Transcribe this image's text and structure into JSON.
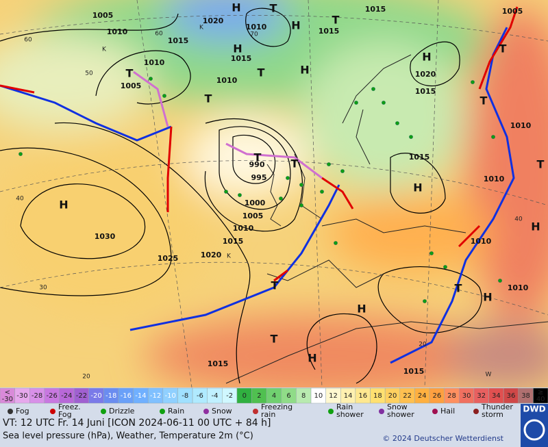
{
  "map": {
    "isobar_labels": [
      1005,
      1010,
      1015,
      1020,
      1010,
      1015,
      1015,
      1005,
      1010,
      1005,
      1015,
      1010,
      1020,
      1015,
      1010,
      1015,
      990,
      995,
      1000,
      1005,
      1010,
      1015,
      1020,
      1030,
      1025,
      1010,
      1010,
      1010,
      1015,
      1015
    ],
    "pressure_centers": [
      "H",
      "T",
      "H",
      "T",
      "H",
      "T",
      "H",
      "H",
      "T",
      "T",
      "T",
      "T",
      "T",
      "T",
      "H",
      "H",
      "H",
      "T",
      "H",
      "H",
      "T",
      "T",
      "H",
      "T"
    ],
    "latitude_labels": [
      60,
      50,
      40,
      30,
      20,
      40,
      20,
      60,
      70
    ],
    "grid_marks": [
      "K",
      "K",
      "K",
      "W"
    ]
  },
  "scale": {
    "under": {
      "label": "<",
      "value": -30
    },
    "values": [
      -30,
      -28,
      -26,
      -24,
      -22,
      -20,
      -18,
      -16,
      -14,
      -12,
      -10,
      -8,
      -6,
      -4,
      -2,
      0,
      2,
      4,
      6,
      8,
      10,
      12,
      14,
      16,
      18,
      20,
      22,
      24,
      26,
      28,
      30,
      32,
      34,
      36,
      38
    ],
    "over": {
      "label": "≥",
      "value": 40
    },
    "colors": [
      "#d98ad9",
      "#e6a8ec",
      "#d890e8",
      "#c878e0",
      "#b868d8",
      "#a060d0",
      "#7a7ae8",
      "#6a8cf0",
      "#6aa0f8",
      "#70b0ff",
      "#80c0ff",
      "#90d0ff",
      "#a0e0ff",
      "#b0eaff",
      "#c0f0ff",
      "#d0f8ff",
      "#30b040",
      "#50c050",
      "#70d070",
      "#90dc88",
      "#b8eab0",
      "#ffffff",
      "#fff8d0",
      "#fff0b0",
      "#ffe890",
      "#ffe070",
      "#ffd060",
      "#ffc050",
      "#ffb040",
      "#ffa040",
      "#ff9060",
      "#f07060",
      "#e86060",
      "#e05050",
      "#d04848",
      "#b07070",
      "#c0a0a0"
    ]
  },
  "legend": [
    "Fog",
    "Freez. Fog",
    "Drizzle",
    "Rain",
    "Snow",
    "Freezing rain",
    "Rain shower",
    "Snow shower",
    "Hail",
    "Thunder storm"
  ],
  "footer": {
    "valid_time": "VT: 12 UTC Fr.  14 Juni [ICON 2024-06-11  00 UTC + 84 h]",
    "description": "Sea level pressure (hPa), Weather, Temperature 2m (°C)",
    "copyright": "© 2024 Deutscher Wetterdienst",
    "logo": "DWD"
  }
}
